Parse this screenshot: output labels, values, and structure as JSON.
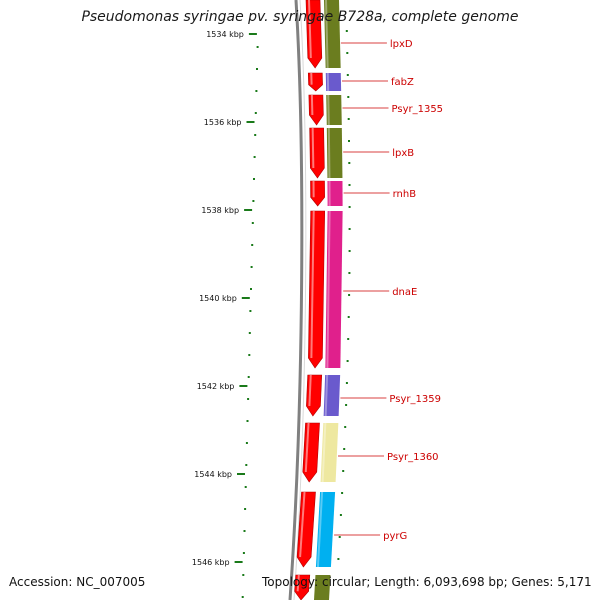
{
  "title": "Pseudomonas syringae pv. syringae B728a, complete genome",
  "footer": {
    "accession": "Accession: NC_007005",
    "topology": "Topology: circular; Length: 6,093,698 bp; Genes: 5,171"
  },
  "ruler": {
    "ticks": [
      "1534 kbp",
      "1536 kbp",
      "1538 kbp",
      "1540 kbp",
      "1542 kbp",
      "1544 kbp",
      "1546 kbp"
    ]
  },
  "genes": [
    {
      "name": "lpxD",
      "color": "#6b7d1f"
    },
    {
      "name": "fabZ",
      "color": "#6a5acd"
    },
    {
      "name": "Psyr_1355",
      "color": "#6b7d1f"
    },
    {
      "name": "lpxB",
      "color": "#6b7d1f"
    },
    {
      "name": "rnhB",
      "color": "#e0208c"
    },
    {
      "name": "dnaE",
      "color": "#e0208c"
    },
    {
      "name": "Psyr_1359",
      "color": "#6a5acd"
    },
    {
      "name": "Psyr_1360",
      "color": "#eee8a0"
    },
    {
      "name": "pyrG",
      "color": "#00b0f0"
    }
  ],
  "colors": {
    "strand_arrow": "#ff0000",
    "backbone": "#808080",
    "tick": "#1a7a1a",
    "label": "#cc0000"
  }
}
